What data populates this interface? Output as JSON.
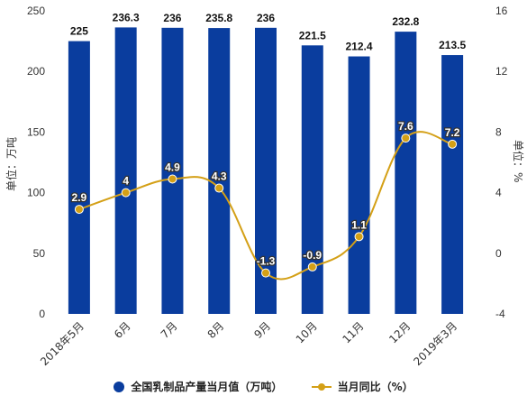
{
  "chart_data": {
    "type": "bar",
    "categories": [
      "2018年5月",
      "6月",
      "7月",
      "8月",
      "9月",
      "10月",
      "11月",
      "12月",
      "2019年3月"
    ],
    "series": [
      {
        "name": "全国乳制品产量当月值（万吨）",
        "type": "bar",
        "axis": "left",
        "values": [
          225,
          236.3,
          236,
          235.8,
          236,
          221.5,
          212.4,
          232.8,
          213.5
        ],
        "labels": [
          "225",
          "236.3",
          "236",
          "235.8",
          "236",
          "221.5",
          "212.4",
          "232.8",
          "213.5"
        ],
        "color": "#0a3d9e"
      },
      {
        "name": "当月同比（%）",
        "type": "line",
        "axis": "right",
        "values": [
          2.9,
          4,
          4.9,
          4.3,
          -1.3,
          -0.9,
          1.1,
          7.6,
          7.2
        ],
        "labels": [
          "2.9",
          "4",
          "4.9",
          "4.3",
          "-1.3",
          "-0.9",
          "1.1",
          "7.6",
          "7.2"
        ],
        "color": "#d4a017"
      }
    ],
    "ylabel": "单位：万吨",
    "y2label": "单位：%",
    "ylim": [
      0,
      250
    ],
    "y2lim": [
      -4,
      16
    ],
    "yticks": [
      "0",
      "50",
      "100",
      "150",
      "200",
      "250"
    ],
    "y2ticks": [
      "-4",
      "0",
      "4",
      "8",
      "12",
      "16"
    ],
    "legend_position": "bottom",
    "grid": false
  }
}
